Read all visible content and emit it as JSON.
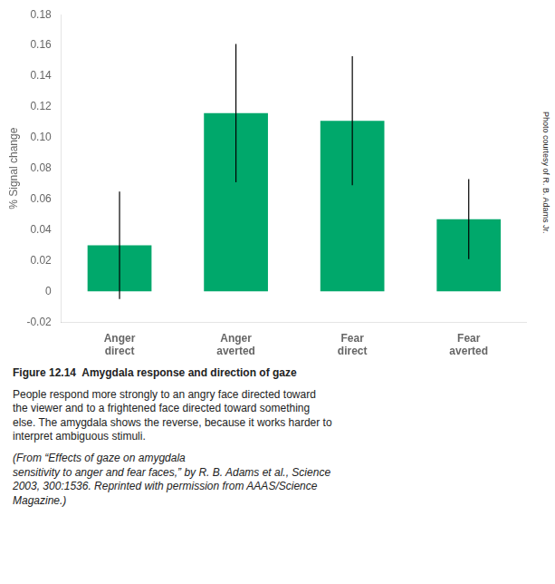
{
  "chart_data": {
    "type": "bar",
    "categories": [
      "Anger\ndirect",
      "Anger\naverted",
      "Fear\ndirect",
      "Fear\naverted"
    ],
    "values": [
      0.03,
      0.116,
      0.111,
      0.047
    ],
    "errors": [
      0.035,
      0.045,
      0.042,
      0.026
    ],
    "color": "#00A86B",
    "ylabel": "% Signal change",
    "ylim": [
      -0.02,
      0.18
    ],
    "yticks": [
      -0.02,
      0,
      0.02,
      0.04,
      0.06,
      0.08,
      {
        "value": 0.1,
        "label": "0.10"
      },
      0.12,
      0.14,
      0.16,
      0.18
    ],
    "grid": false,
    "annotations": [
      "Figure 12.14",
      "  Amygdala response and direction of gaze",
      "People respond more strongly to an angry face directed toward\nthe viewer and to a frightened face directed toward something\nelse. The amygdala shows the reverse, because it works harder to\ninterpret ambiguous stimuli.",
      "(From “Effects of gaze on amygdala\nsensitivity to anger and fear faces,” by R. B. Adams et al., Science\n2003, 300:1536. Reprinted with permission from AAAS/Science\nMagazine.)",
      "Photo courtesy of R. B. Adams Jr."
    ]
  }
}
